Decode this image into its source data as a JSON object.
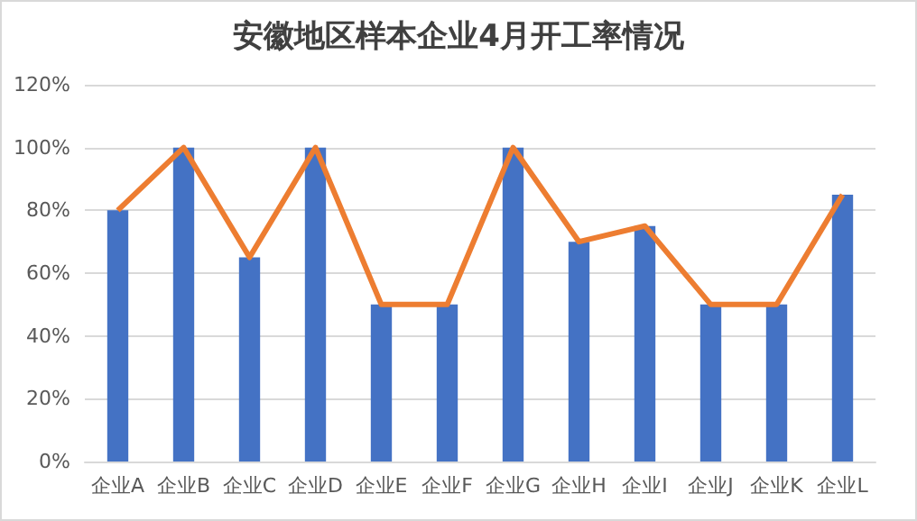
{
  "chart_data": {
    "type": "bar",
    "title": "安徽地区样本企业4月开工率情况",
    "categories": [
      "企业A",
      "企业B",
      "企业C",
      "企业D",
      "企业E",
      "企业F",
      "企业G",
      "企业H",
      "企业I",
      "企业J",
      "企业K",
      "企业L"
    ],
    "series": [
      {
        "color": "#4472c4",
        "values": [
          80,
          100,
          65,
          100,
          50,
          50,
          100,
          70,
          75,
          50,
          50,
          85
        ]
      },
      {
        "type": "line",
        "color": "#ed7d31",
        "values": [
          80,
          100,
          65,
          100,
          50,
          50,
          100,
          70,
          75,
          50,
          50,
          85
        ]
      }
    ],
    "ylim": [
      0,
      120
    ],
    "yticks": [
      {
        "value": 0,
        "label": "0%"
      },
      {
        "value": 20,
        "label": "20%"
      },
      {
        "value": 40,
        "label": "40%"
      },
      {
        "value": 60,
        "label": "60%"
      },
      {
        "value": 80,
        "label": "80%"
      },
      {
        "value": 100,
        "label": "100%"
      },
      {
        "value": 120,
        "label": "120%"
      }
    ],
    "grid": "y",
    "marker": "none"
  }
}
